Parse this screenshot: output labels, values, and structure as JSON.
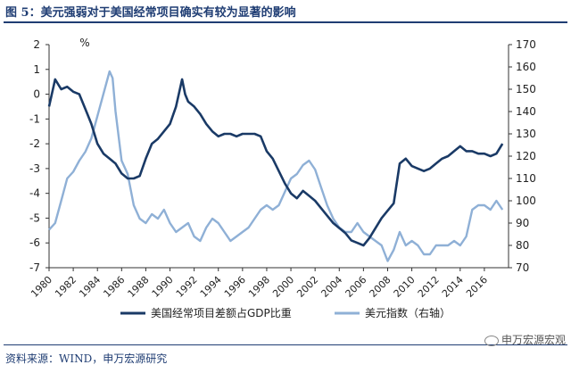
{
  "header": {
    "title": "图 5：美元强弱对于美国经常项目确实有较为显著的影响"
  },
  "footer": {
    "source": "资料来源：WIND，申万宏源研究",
    "watermark": "申万宏源宏观"
  },
  "colors": {
    "left_series": "#1a3a66",
    "right_series": "#8fb0d6",
    "title": "#1f3d73"
  },
  "chart_data": {
    "type": "line",
    "unit_label": "%",
    "xlim": [
      1980,
      2018
    ],
    "x_ticks": [
      "1980",
      "1982",
      "1984",
      "1986",
      "1988",
      "1990",
      "1992",
      "1994",
      "1996",
      "1998",
      "2000",
      "2002",
      "2004",
      "2006",
      "2008",
      "2010",
      "2012",
      "2014",
      "2016"
    ],
    "y_left": {
      "lim": [
        -7,
        2
      ],
      "ticks": [
        "2",
        "1",
        "0",
        "-1",
        "-2",
        "-3",
        "-4",
        "-5",
        "-6",
        "-7"
      ]
    },
    "y_right": {
      "lim": [
        70,
        170
      ],
      "ticks": [
        "170",
        "160",
        "150",
        "140",
        "130",
        "120",
        "110",
        "100",
        "90",
        "80",
        "70"
      ]
    },
    "series": [
      {
        "name": "美国经常项目差额占GDP比重",
        "axis": "left",
        "x": [
          1980,
          1980.5,
          1981,
          1981.5,
          1982,
          1982.5,
          1983,
          1983.5,
          1984,
          1984.5,
          1985,
          1985.5,
          1986,
          1986.5,
          1987,
          1987.5,
          1988,
          1988.5,
          1989,
          1989.5,
          1990,
          1990.5,
          1991,
          1991.25,
          1991.5,
          1992,
          1992.5,
          1993,
          1993.5,
          1994,
          1994.5,
          1995,
          1995.5,
          1996,
          1996.5,
          1997,
          1997.5,
          1998,
          1998.5,
          1999,
          1999.5,
          2000,
          2000.5,
          2001,
          2001.5,
          2002,
          2002.5,
          2003,
          2003.5,
          2004,
          2004.5,
          2005,
          2005.5,
          2006,
          2006.5,
          2007,
          2007.5,
          2008,
          2008.5,
          2009,
          2009.5,
          2010,
          2010.5,
          2011,
          2011.5,
          2012,
          2012.5,
          2013,
          2013.5,
          2014,
          2014.5,
          2015,
          2015.5,
          2016,
          2016.5,
          2017,
          2017.5
        ],
        "y": [
          -0.5,
          0.6,
          0.2,
          0.3,
          0.1,
          0.0,
          -0.6,
          -1.2,
          -2.0,
          -2.4,
          -2.6,
          -2.8,
          -3.2,
          -3.4,
          -3.4,
          -3.3,
          -2.6,
          -2.0,
          -1.8,
          -1.5,
          -1.2,
          -0.5,
          0.6,
          0.0,
          -0.3,
          -0.5,
          -0.8,
          -1.2,
          -1.5,
          -1.7,
          -1.6,
          -1.6,
          -1.7,
          -1.6,
          -1.6,
          -1.6,
          -1.7,
          -2.3,
          -2.6,
          -3.1,
          -3.6,
          -4.0,
          -4.2,
          -3.9,
          -4.1,
          -4.3,
          -4.6,
          -4.9,
          -5.2,
          -5.4,
          -5.6,
          -5.9,
          -6.0,
          -6.1,
          -5.8,
          -5.4,
          -5.0,
          -4.7,
          -4.4,
          -2.8,
          -2.6,
          -2.9,
          -3.0,
          -3.1,
          -3.0,
          -2.8,
          -2.6,
          -2.5,
          -2.3,
          -2.1,
          -2.3,
          -2.3,
          -2.4,
          -2.4,
          -2.5,
          -2.4,
          -2.0
        ]
      },
      {
        "name": "美元指数（右轴）",
        "axis": "right",
        "x": [
          1980,
          1980.5,
          1981,
          1981.5,
          1982,
          1982.5,
          1983,
          1983.5,
          1984,
          1984.5,
          1985,
          1985.25,
          1985.5,
          1986,
          1986.5,
          1987,
          1987.5,
          1988,
          1988.5,
          1989,
          1989.5,
          1990,
          1990.5,
          1991,
          1991.5,
          1992,
          1992.5,
          1993,
          1993.5,
          1994,
          1994.5,
          1995,
          1995.5,
          1996,
          1996.5,
          1997,
          1997.5,
          1998,
          1998.5,
          1999,
          1999.5,
          2000,
          2000.5,
          2001,
          2001.5,
          2002,
          2002.5,
          2003,
          2003.5,
          2004,
          2004.5,
          2005,
          2005.5,
          2006,
          2006.5,
          2007,
          2007.5,
          2008,
          2008.5,
          2009,
          2009.5,
          2010,
          2010.5,
          2011,
          2011.5,
          2012,
          2012.5,
          2013,
          2013.5,
          2014,
          2014.5,
          2015,
          2015.5,
          2016,
          2016.5,
          2017,
          2017.5
        ],
        "y": [
          87,
          90,
          100,
          110,
          113,
          118,
          122,
          128,
          138,
          148,
          158,
          155,
          140,
          118,
          112,
          98,
          92,
          90,
          94,
          92,
          96,
          90,
          86,
          88,
          90,
          84,
          82,
          88,
          92,
          90,
          86,
          82,
          84,
          86,
          88,
          92,
          96,
          98,
          96,
          98,
          104,
          110,
          112,
          116,
          118,
          114,
          106,
          98,
          92,
          88,
          86,
          86,
          90,
          86,
          84,
          82,
          80,
          73,
          78,
          86,
          80,
          82,
          80,
          76,
          76,
          80,
          80,
          80,
          82,
          80,
          84,
          96,
          98,
          98,
          96,
          100,
          96
        ]
      }
    ]
  }
}
